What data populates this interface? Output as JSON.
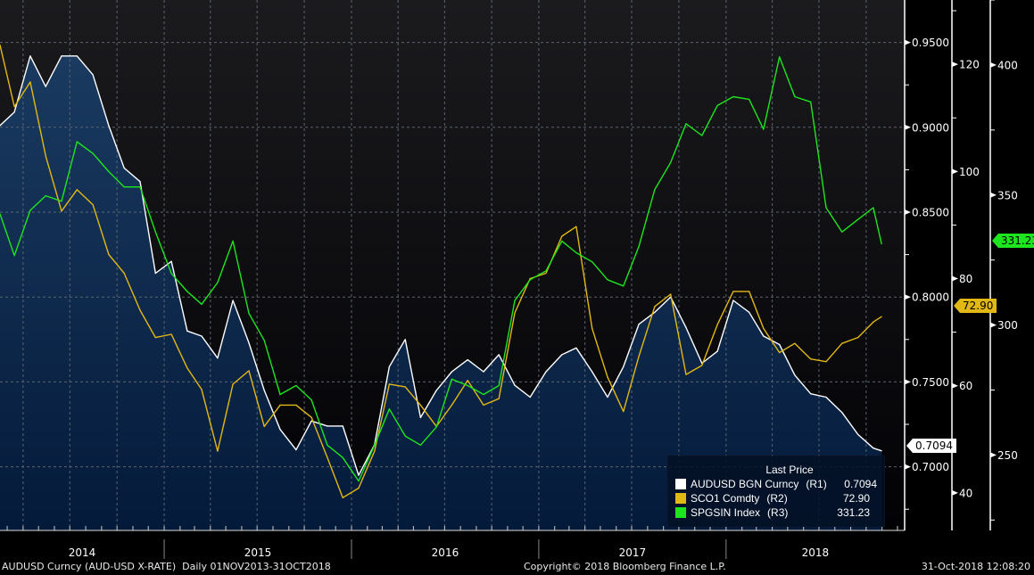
{
  "chart_data": {
    "type": "line",
    "title": "",
    "x_axis": {
      "type": "date",
      "tick_labels": [
        "2014",
        "2015",
        "2016",
        "2017",
        "2018"
      ],
      "xlim": [
        "2014-02-15",
        "2018-12-15"
      ]
    },
    "axes": {
      "R1": {
        "ylim": [
          0.6625,
          0.975
        ],
        "ticks": [
          0.7,
          0.75,
          0.8,
          0.85,
          0.9,
          0.95
        ],
        "tick_labels": [
          "0.7000",
          "0.7500",
          "0.8000",
          "0.8500",
          "0.9000",
          "0.9500"
        ]
      },
      "R2": {
        "ylim": [
          33,
          132
        ],
        "ticks": [
          40,
          60,
          80,
          100,
          120
        ],
        "tick_labels": [
          "40",
          "60",
          "80",
          "100",
          "120"
        ]
      },
      "R3": {
        "ylim": [
          221,
          425
        ],
        "ticks": [
          250,
          300,
          350,
          400
        ],
        "tick_labels": [
          "250",
          "300",
          "350",
          "400"
        ]
      }
    },
    "grid": true,
    "x": [
      "2014-02-15",
      "2014-03-15",
      "2014-04-15",
      "2014-05-15",
      "2014-06-15",
      "2014-07-15",
      "2014-08-15",
      "2014-09-15",
      "2014-10-15",
      "2014-11-15",
      "2014-12-15",
      "2015-01-15",
      "2015-02-15",
      "2015-03-15",
      "2015-04-15",
      "2015-05-15",
      "2015-06-15",
      "2015-07-15",
      "2015-08-15",
      "2015-09-15",
      "2015-10-15",
      "2015-11-15",
      "2015-12-15",
      "2016-01-15",
      "2016-02-15",
      "2016-03-15",
      "2016-04-15",
      "2016-05-15",
      "2016-06-15",
      "2016-07-15",
      "2016-08-15",
      "2016-09-15",
      "2016-10-15",
      "2016-11-15",
      "2016-12-15",
      "2017-01-15",
      "2017-02-15",
      "2017-03-15",
      "2017-04-15",
      "2017-05-15",
      "2017-06-15",
      "2017-07-15",
      "2017-08-15",
      "2017-09-15",
      "2017-10-15",
      "2017-11-15",
      "2017-12-15",
      "2018-01-15",
      "2018-02-15",
      "2018-03-15",
      "2018-04-15",
      "2018-05-15",
      "2018-06-15",
      "2018-07-15",
      "2018-08-15",
      "2018-09-15",
      "2018-10-15",
      "2018-10-31"
    ],
    "series": [
      {
        "name": "AUDUSD BGN Curncy",
        "axis": "R1",
        "color": "#ffffff",
        "area": true,
        "last": "0.7094",
        "values": [
          0.901,
          0.909,
          0.942,
          0.924,
          0.942,
          0.942,
          0.931,
          0.901,
          0.876,
          0.868,
          0.814,
          0.821,
          0.78,
          0.777,
          0.764,
          0.798,
          0.773,
          0.745,
          0.722,
          0.71,
          0.727,
          0.724,
          0.724,
          0.695,
          0.713,
          0.759,
          0.775,
          0.729,
          0.745,
          0.756,
          0.763,
          0.756,
          0.766,
          0.748,
          0.741,
          0.756,
          0.766,
          0.77,
          0.756,
          0.741,
          0.759,
          0.784,
          0.791,
          0.8,
          0.782,
          0.761,
          0.768,
          0.798,
          0.791,
          0.777,
          0.772,
          0.754,
          0.743,
          0.741,
          0.732,
          0.719,
          0.711,
          0.7094
        ]
      },
      {
        "name": "SCO1 Comdty",
        "axis": "R2",
        "color": "#e2b814",
        "last": "72.90",
        "values": [
          123.6,
          112.1,
          116.7,
          102.9,
          92.6,
          96.6,
          93.8,
          84.5,
          81.0,
          74.1,
          69.0,
          69.6,
          63.3,
          59.3,
          47.8,
          60.3,
          62.8,
          52.4,
          56.4,
          56.4,
          54.1,
          46.6,
          39.1,
          40.9,
          47.8,
          60.3,
          59.8,
          56.4,
          52.4,
          56.4,
          61.0,
          56.4,
          57.6,
          73.6,
          80.0,
          81.0,
          87.9,
          89.7,
          70.7,
          61.6,
          55.2,
          65.5,
          74.8,
          77.1,
          62.1,
          63.8,
          71.4,
          77.6,
          77.6,
          70.7,
          66.2,
          67.9,
          65.0,
          64.5,
          67.9,
          69.0,
          71.9,
          72.9
        ]
      },
      {
        "name": "SPGSIN Index",
        "axis": "R3",
        "color": "#1ee61e",
        "last": "331.23",
        "values": [
          342.7,
          326.7,
          344.1,
          349.7,
          347.6,
          370.5,
          366.0,
          359.0,
          353.1,
          353.1,
          335.8,
          319.8,
          312.9,
          308.0,
          316.3,
          332.3,
          304.5,
          294.1,
          273.3,
          276.7,
          271.2,
          253.8,
          249.0,
          240.0,
          253.8,
          267.7,
          257.3,
          253.8,
          260.8,
          279.2,
          276.7,
          273.3,
          276.7,
          309.4,
          317.4,
          320.8,
          332.3,
          327.8,
          324.3,
          317.4,
          315.0,
          330.2,
          352.1,
          362.5,
          377.4,
          372.9,
          384.4,
          387.8,
          386.8,
          375.3,
          403.1,
          387.8,
          385.8,
          345.1,
          335.8,
          340.6,
          345.1,
          331.23
        ]
      }
    ],
    "legend": {
      "title": "Last Price",
      "placement": "bottom-right",
      "entries": [
        {
          "label": "AUDUSD BGN Curncy",
          "axis_label": "(R1)",
          "value": "0.7094"
        },
        {
          "label": "SCO1 Comdty",
          "axis_label": "(R2)",
          "value": "72.90"
        },
        {
          "label": "SPGSIN Index",
          "axis_label": "(R3)",
          "value": "331.23"
        }
      ]
    }
  },
  "footer": {
    "security": "AUDUSD Curncy (AUD-USD X-RATE)  Daily 01NOV2013-31OCT2018",
    "copyright": "Copyright© 2018 Bloomberg Finance L.P.",
    "timestamp": "31-Oct-2018 12:08:20"
  }
}
